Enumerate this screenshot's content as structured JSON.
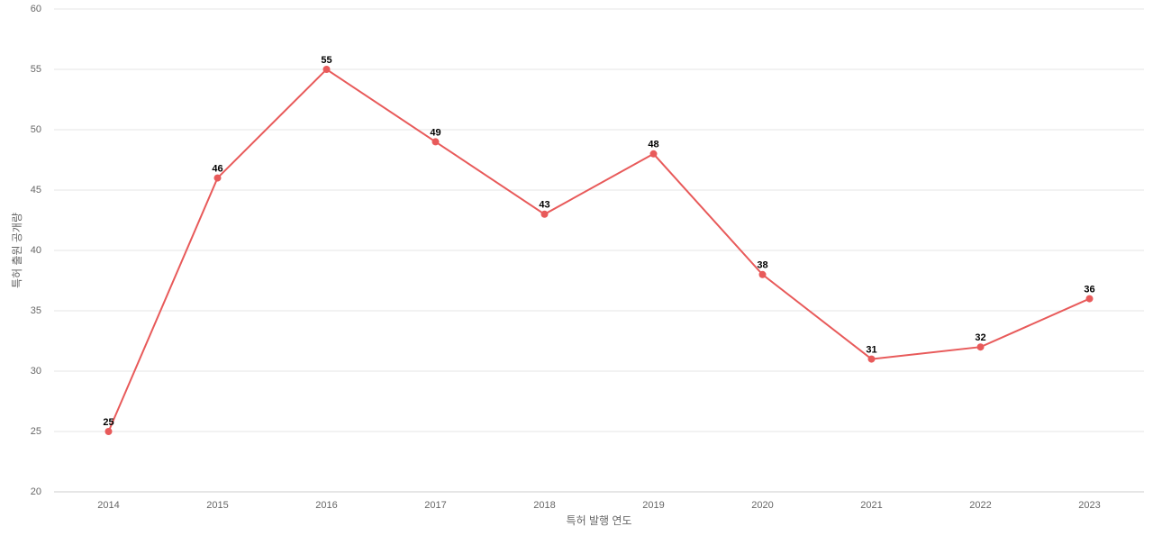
{
  "chart_data": {
    "type": "line",
    "x_label": "특허 발행 연도",
    "y_label": "특허 출원 공개량",
    "categories": [
      "2014",
      "2015",
      "2016",
      "2017",
      "2018",
      "2019",
      "2020",
      "2021",
      "2022",
      "2023"
    ],
    "values": [
      25,
      46,
      55,
      49,
      43,
      48,
      38,
      31,
      32,
      36
    ],
    "color": "#e85a5a",
    "ylim": [
      20,
      60
    ],
    "yticks": [
      20,
      25,
      30,
      35,
      40,
      45,
      50,
      55,
      60
    ],
    "grid": true
  }
}
